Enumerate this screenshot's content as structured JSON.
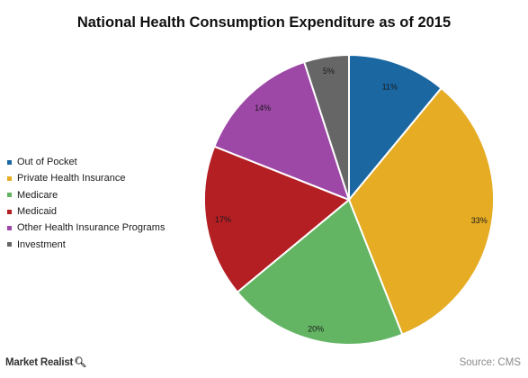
{
  "chart_data": {
    "type": "pie",
    "title": "National Health Consumption Expenditure as of 2015",
    "categories": [
      "Out of Pocket",
      "Private Health Insurance",
      "Medicare",
      "Medicaid",
      "Other Health Insurance Programs",
      "Investment"
    ],
    "values": [
      11,
      33,
      20,
      17,
      14,
      5
    ],
    "labels": [
      "11%",
      "33%",
      "20%",
      "17%",
      "14%",
      "5%"
    ],
    "colors": [
      "#1a67a2",
      "#e5ac24",
      "#63b563",
      "#b41f24",
      "#9d47a6",
      "#666666"
    ],
    "legend_position": "left"
  },
  "footer": {
    "brand": "Market Realist",
    "brand_icon": "magnifier-icon",
    "source": "Source: CMS"
  }
}
